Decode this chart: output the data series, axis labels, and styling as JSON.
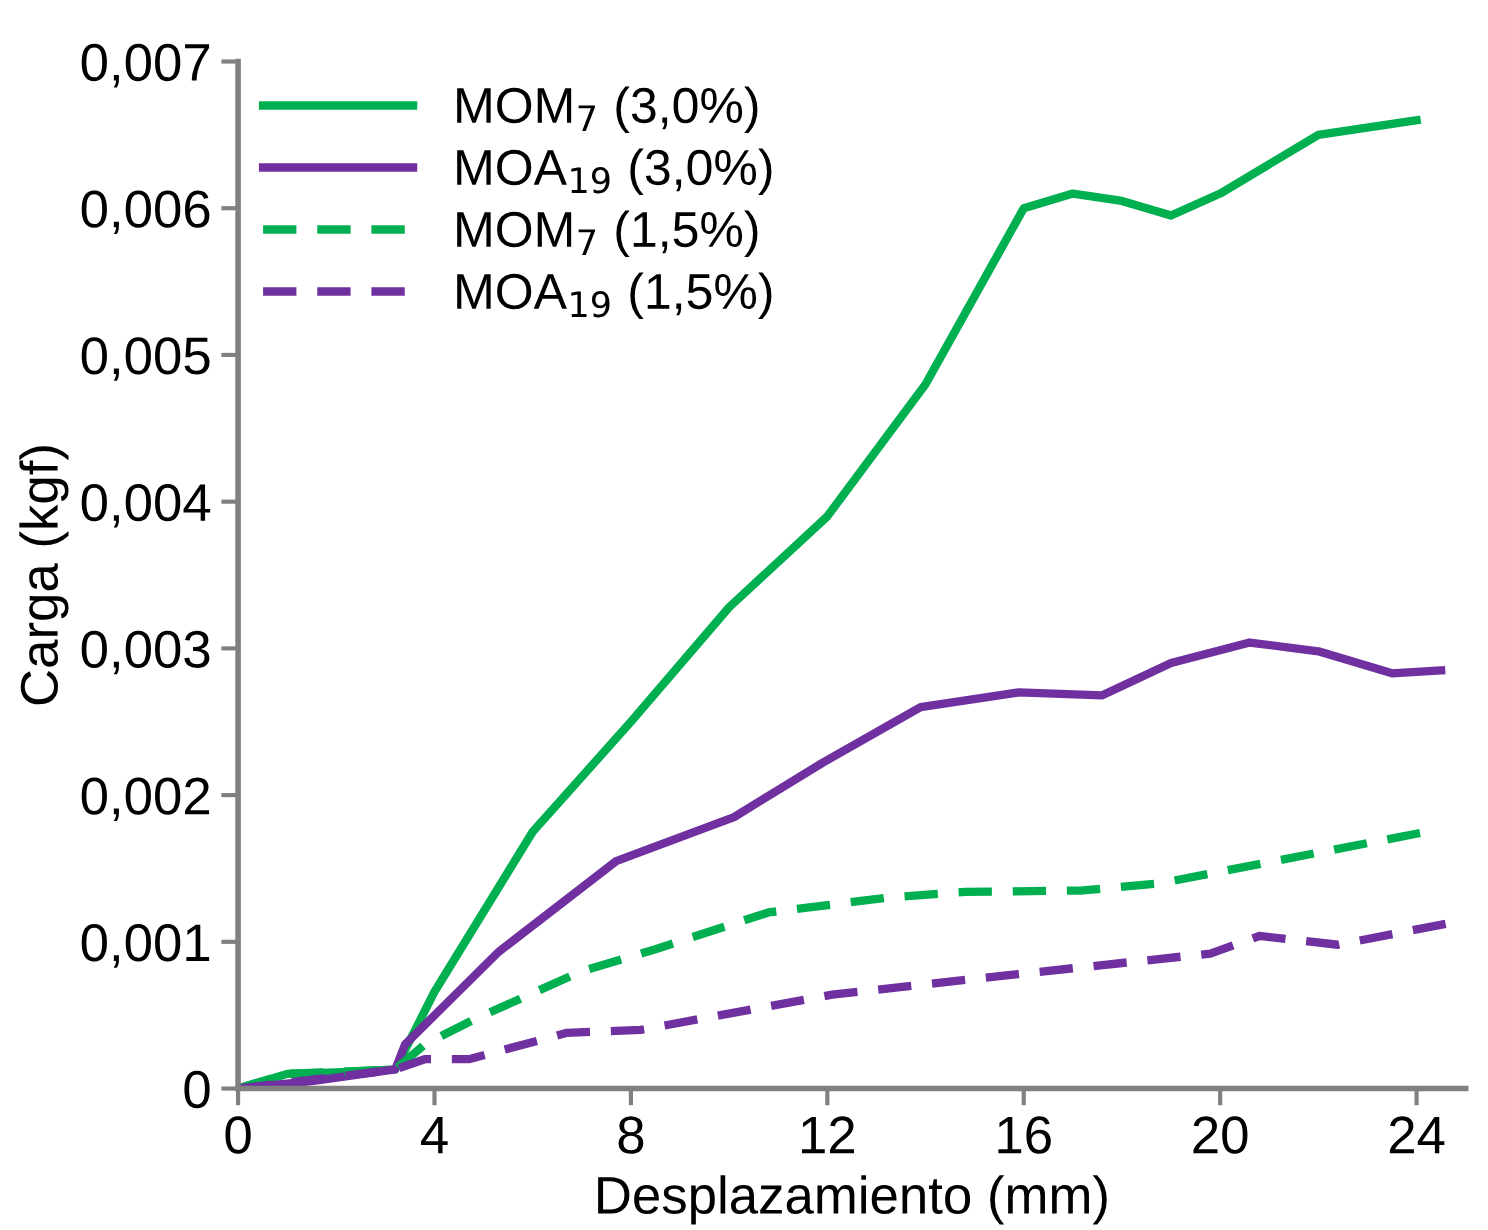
{
  "chart_data": {
    "type": "line",
    "xlabel": "Desplazamiento (mm)",
    "ylabel": "Carga (kgf)",
    "xlim": [
      0,
      25
    ],
    "xticks": [
      0,
      4,
      8,
      12,
      16,
      20,
      24
    ],
    "ylim": [
      0,
      0.007
    ],
    "yticks": [
      0,
      {
        "value": 0.001,
        "label": "0,001"
      },
      {
        "value": 0.002,
        "label": "0,002"
      },
      {
        "value": 0.003,
        "label": "0,003"
      },
      {
        "value": 0.004,
        "label": "0,004"
      },
      {
        "value": 0.005,
        "label": "0,005"
      },
      {
        "value": 0.006,
        "label": "0,006"
      },
      {
        "value": 0.007,
        "label": "0,007"
      }
    ],
    "grid": false,
    "legend": "top left",
    "marker": "none",
    "series": [
      {
        "name": "MOM$_{7}$ (3,0%)",
        "color": "#00b050",
        "line_style": "solid",
        "x": [
          0,
          1,
          2,
          3.2,
          4,
          6,
          8,
          10,
          12,
          14,
          16,
          17,
          18,
          19,
          20,
          22,
          24
        ],
        "values": [
          0,
          0.0001,
          0.00011,
          0.00013,
          0.00066,
          0.00175,
          0.0025,
          0.00328,
          0.0039,
          0.0048,
          0.006,
          0.0061,
          0.00605,
          0.00595,
          0.0061,
          0.0065,
          0.0066
        ]
      },
      {
        "name": "MOA$_{19}$ (3,0%)",
        "color": "#7030a0",
        "line_style": "solid",
        "x": [
          0,
          1.5,
          3.2,
          3.4,
          5.3,
          7.7,
          10.1,
          11.9,
          13.9,
          15.9,
          17.6,
          19,
          20.6,
          22,
          23.5,
          24.5
        ],
        "values": [
          0,
          5e-05,
          0.00013,
          0.0003,
          0.00093,
          0.00155,
          0.00185,
          0.00222,
          0.0026,
          0.0027,
          0.00268,
          0.0029,
          0.00304,
          0.00298,
          0.00283,
          0.00285
        ]
      },
      {
        "name": "MOM$_{7}$ (1,5%)",
        "color": "#00b050",
        "line_style": "dashed",
        "x": [
          0,
          1,
          3.2,
          3.8,
          4.8,
          7,
          8.5,
          10.8,
          13.2,
          14.8,
          17.2,
          18.8,
          21.1,
          24.2
        ],
        "values": [
          0,
          0.0001,
          0.00013,
          0.0003,
          0.00047,
          0.0008,
          0.00095,
          0.0012,
          0.0013,
          0.00134,
          0.00135,
          0.0014,
          0.00155,
          0.00175
        ]
      },
      {
        "name": "MOA$_{19}$ (1,5%)",
        "color": "#7030a0",
        "line_style": "dashed",
        "x": [
          0,
          1.5,
          3.2,
          3.8,
          4.7,
          6.7,
          8.2,
          12.1,
          15.6,
          19.8,
          20.8,
          22.4,
          24.7
        ],
        "values": [
          0,
          6e-05,
          0.00013,
          0.0002,
          0.0002,
          0.00038,
          0.0004,
          0.00064,
          0.00077,
          0.00092,
          0.00104,
          0.00098,
          0.00113
        ]
      }
    ]
  }
}
